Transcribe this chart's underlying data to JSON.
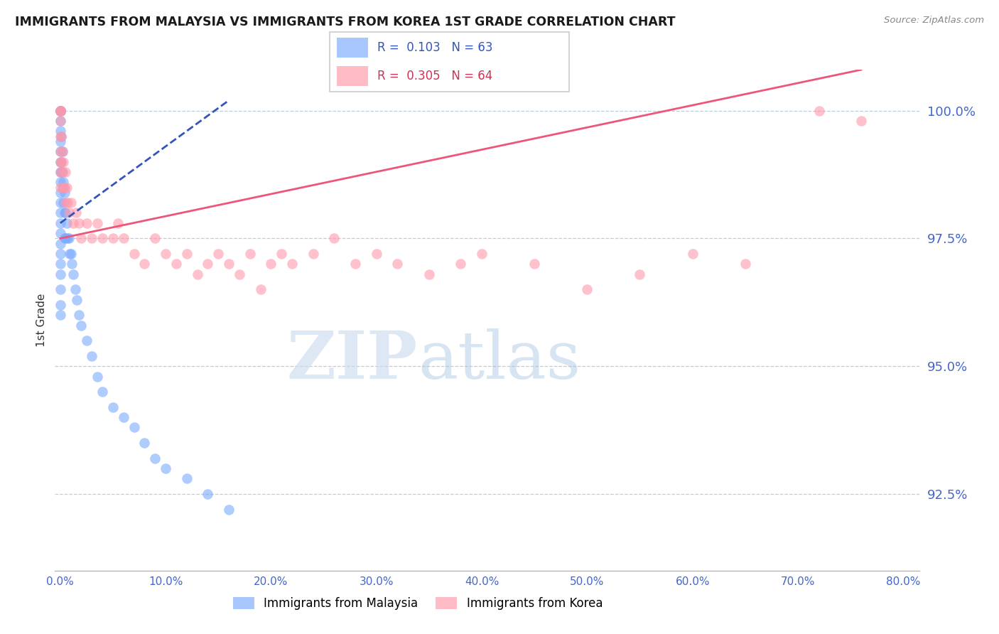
{
  "title": "IMMIGRANTS FROM MALAYSIA VS IMMIGRANTS FROM KOREA 1ST GRADE CORRELATION CHART",
  "source": "Source: ZipAtlas.com",
  "ylabel": "1st Grade",
  "watermark_zip": "ZIP",
  "watermark_atlas": "atlas",
  "x_min": 0.0,
  "x_max": 80.0,
  "y_min": 91.0,
  "y_max": 100.8,
  "y_ticks": [
    92.5,
    95.0,
    97.5,
    100.0
  ],
  "x_ticks": [
    0.0,
    10.0,
    20.0,
    30.0,
    40.0,
    50.0,
    60.0,
    70.0,
    80.0
  ],
  "malaysia_color": "#7aaaff",
  "korea_color": "#ff99aa",
  "trend_malaysia_color": "#3355bb",
  "trend_korea_color": "#ee5577",
  "malaysia_x": [
    0.0,
    0.0,
    0.0,
    0.0,
    0.0,
    0.0,
    0.0,
    0.0,
    0.0,
    0.0,
    0.0,
    0.0,
    0.0,
    0.0,
    0.0,
    0.0,
    0.0,
    0.0,
    0.0,
    0.0,
    0.0,
    0.0,
    0.0,
    0.0,
    0.0,
    0.0,
    0.1,
    0.1,
    0.1,
    0.2,
    0.2,
    0.2,
    0.3,
    0.3,
    0.4,
    0.4,
    0.4,
    0.5,
    0.5,
    0.6,
    0.7,
    0.8,
    0.9,
    1.0,
    1.1,
    1.2,
    1.4,
    1.6,
    1.8,
    2.0,
    2.5,
    3.0,
    3.5,
    4.0,
    5.0,
    6.0,
    7.0,
    8.0,
    9.0,
    10.0,
    12.0,
    14.0,
    16.0
  ],
  "malaysia_y": [
    100.0,
    100.0,
    100.0,
    100.0,
    100.0,
    100.0,
    100.0,
    99.8,
    99.6,
    99.4,
    99.2,
    99.0,
    98.8,
    98.6,
    98.4,
    98.2,
    98.0,
    97.8,
    97.6,
    97.4,
    97.2,
    97.0,
    96.8,
    96.5,
    96.2,
    96.0,
    99.5,
    99.0,
    98.8,
    99.2,
    98.8,
    98.5,
    98.6,
    98.2,
    98.4,
    98.0,
    97.5,
    98.0,
    97.5,
    97.8,
    97.5,
    97.5,
    97.2,
    97.2,
    97.0,
    96.8,
    96.5,
    96.3,
    96.0,
    95.8,
    95.5,
    95.2,
    94.8,
    94.5,
    94.2,
    94.0,
    93.8,
    93.5,
    93.2,
    93.0,
    92.8,
    92.5,
    92.2
  ],
  "korea_x": [
    0.0,
    0.0,
    0.0,
    0.0,
    0.0,
    0.0,
    0.0,
    0.0,
    0.0,
    0.1,
    0.1,
    0.2,
    0.2,
    0.3,
    0.3,
    0.4,
    0.5,
    0.5,
    0.6,
    0.7,
    0.8,
    1.0,
    1.2,
    1.5,
    1.8,
    2.0,
    2.5,
    3.0,
    3.5,
    4.0,
    5.0,
    5.5,
    6.0,
    7.0,
    8.0,
    9.0,
    10.0,
    11.0,
    12.0,
    13.0,
    14.0,
    15.0,
    16.0,
    17.0,
    18.0,
    19.0,
    20.0,
    21.0,
    22.0,
    24.0,
    26.0,
    28.0,
    30.0,
    32.0,
    35.0,
    38.0,
    40.0,
    45.0,
    50.0,
    55.0,
    60.0,
    65.0,
    72.0,
    76.0
  ],
  "korea_y": [
    100.0,
    100.0,
    100.0,
    99.8,
    99.5,
    99.2,
    99.0,
    98.8,
    98.5,
    99.5,
    99.0,
    99.2,
    98.8,
    99.0,
    98.5,
    98.5,
    98.8,
    98.2,
    98.5,
    98.2,
    98.0,
    98.2,
    97.8,
    98.0,
    97.8,
    97.5,
    97.8,
    97.5,
    97.8,
    97.5,
    97.5,
    97.8,
    97.5,
    97.2,
    97.0,
    97.5,
    97.2,
    97.0,
    97.2,
    96.8,
    97.0,
    97.2,
    97.0,
    96.8,
    97.2,
    96.5,
    97.0,
    97.2,
    97.0,
    97.2,
    97.5,
    97.0,
    97.2,
    97.0,
    96.8,
    97.0,
    97.2,
    97.0,
    96.5,
    96.8,
    97.2,
    97.0,
    100.0,
    99.8
  ],
  "malaysia_trend_x0": 0.0,
  "malaysia_trend_y0": 97.8,
  "malaysia_trend_x1": 16.0,
  "malaysia_trend_y1": 100.2,
  "korea_trend_x0": 0.0,
  "korea_trend_y0": 97.5,
  "korea_trend_x1": 76.0,
  "korea_trend_y1": 100.8
}
